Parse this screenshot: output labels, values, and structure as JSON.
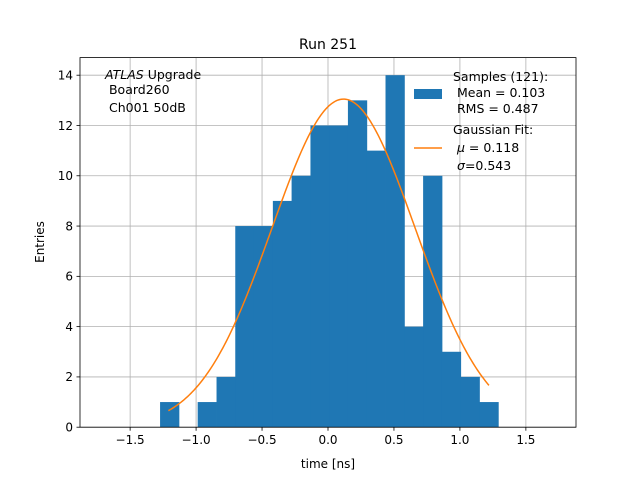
{
  "chart_data": {
    "type": "bar",
    "title": "Run 251",
    "xlabel": "time [ns]",
    "ylabel": "Entries",
    "xlim": [
      -1.88,
      1.88
    ],
    "ylim": [
      0,
      14.7
    ],
    "xticks": [
      -1.5,
      -1.0,
      -0.5,
      0.0,
      0.5,
      1.0,
      1.5
    ],
    "xtick_labels": [
      "−1.5",
      "−1.0",
      "−0.5",
      "0.0",
      "0.5",
      "1.0",
      "1.5"
    ],
    "yticks": [
      0,
      2,
      4,
      6,
      8,
      10,
      12,
      14
    ],
    "ytick_labels": [
      "0",
      "2",
      "4",
      "6",
      "8",
      "10",
      "12",
      "14"
    ],
    "grid": true,
    "histogram": {
      "name": "Samples (121):",
      "color": "#1f77b4",
      "bin_edges": [
        -1.273,
        -1.13,
        -0.988,
        -0.845,
        -0.703,
        -0.561,
        -0.418,
        -0.276,
        -0.133,
        0.009,
        0.151,
        0.294,
        0.436,
        0.579,
        0.721,
        0.864,
        1.006,
        1.148,
        1.291
      ],
      "counts": [
        1,
        0,
        1,
        2,
        8,
        8,
        9,
        10,
        12,
        12,
        13,
        11,
        14,
        4,
        10,
        3,
        2,
        1
      ]
    },
    "fit": {
      "name": "Gaussian Fit:",
      "color": "#ff7f0e",
      "mu": 0.118,
      "sigma": 0.543,
      "amplitude": 13.05,
      "x_range": [
        -1.21,
        1.22
      ]
    },
    "annotation": {
      "italic": "ATLAS",
      "rest": " Upgrade",
      "line2": " Board260",
      "line3": " Ch001 50dB"
    },
    "legend": {
      "placement": "top-right",
      "entries": [
        {
          "key": "hist",
          "header": "Samples (121):",
          "line1": " Mean = 0.103",
          "line2": " RMS = 0.487"
        },
        {
          "key": "fit",
          "header": "Gaussian Fit:",
          "mu_symbol": "μ",
          "mu_text": " = 0.118",
          "sigma_symbol": "σ",
          "sigma_text": "=0.543"
        }
      ]
    }
  }
}
